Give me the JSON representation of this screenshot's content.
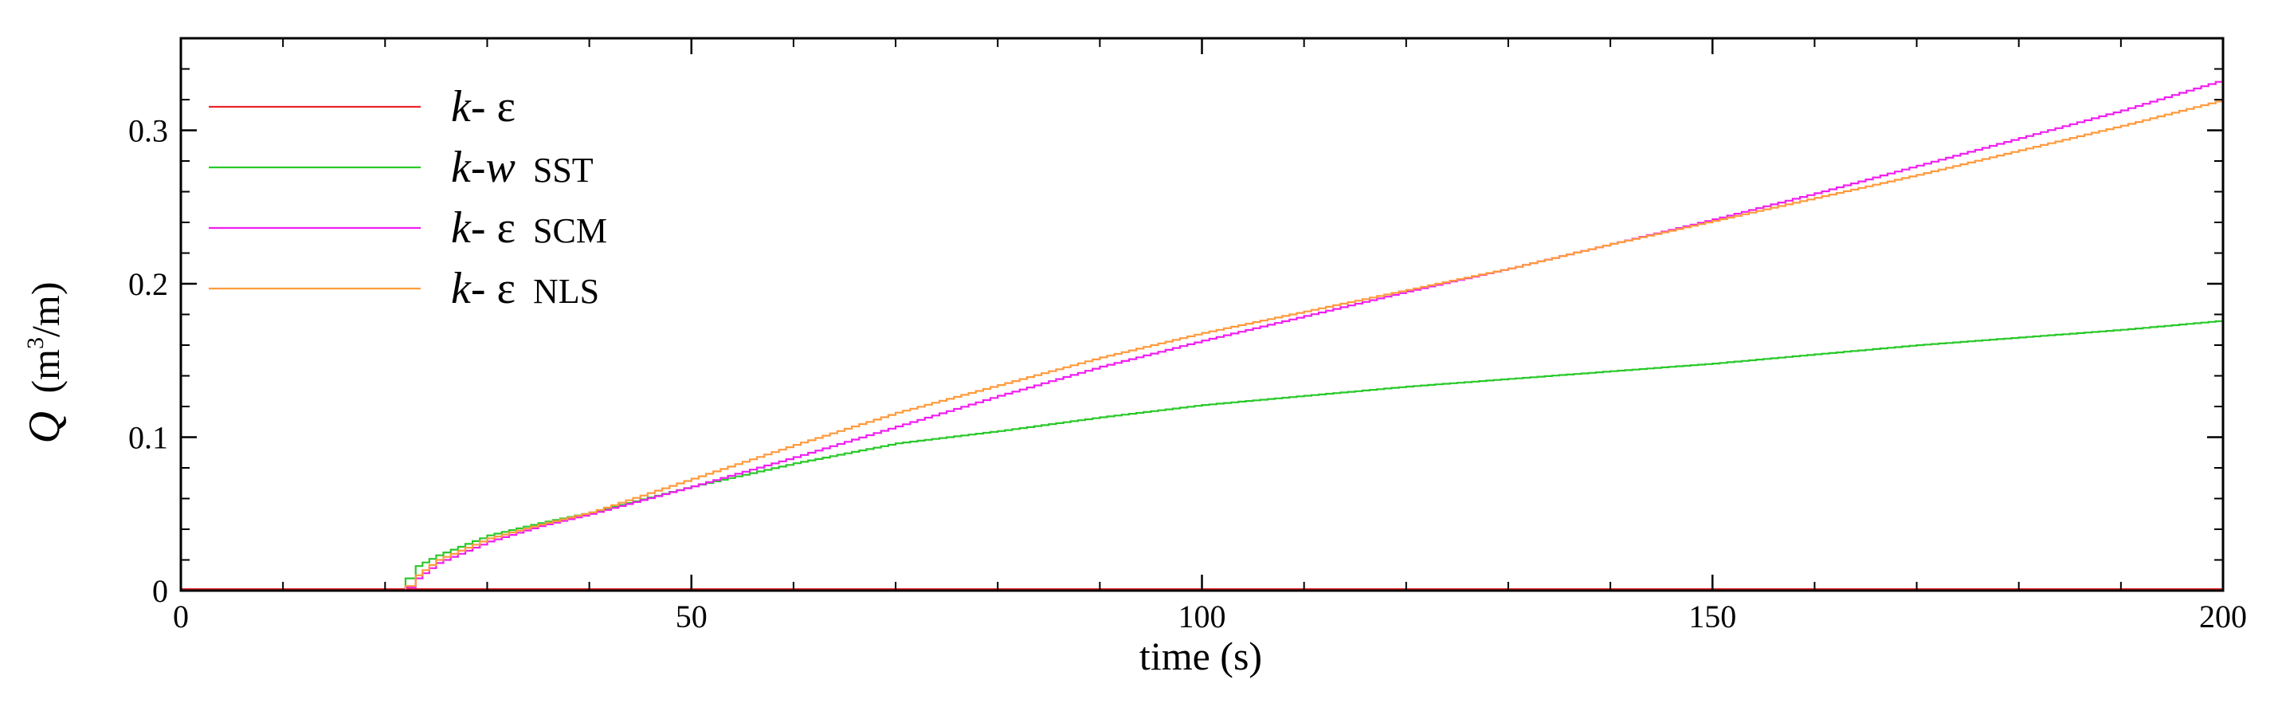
{
  "chart_data": {
    "type": "line",
    "title": "",
    "xlabel": "time (s)",
    "ylabel_symbol": "Q",
    "ylabel_unit_pre": "(m",
    "ylabel_unit_sup": "3",
    "ylabel_unit_post": "/m)",
    "xlim": [
      0,
      200
    ],
    "ylim": [
      0,
      0.36
    ],
    "x_ticks": [
      0,
      50,
      100,
      150,
      200
    ],
    "x_tick_labels": [
      "0",
      "50",
      "100",
      "150",
      "200"
    ],
    "y_ticks": [
      0,
      0.1,
      0.2,
      0.3
    ],
    "y_tick_labels": [
      "0",
      "0.1",
      "0.2",
      "0.3"
    ],
    "grid": false,
    "legend_position": "top-left",
    "series": [
      {
        "name": "k-ε",
        "name_italic": "k",
        "name_rest": "- ε",
        "name_suffix": "",
        "color": "#e8262d",
        "x": [
          0,
          50,
          100,
          150,
          200
        ],
        "y": [
          0.001,
          0.001,
          0.001,
          0.001,
          0.001
        ]
      },
      {
        "name": "k-w SST",
        "name_italic": "k",
        "name_rest": "-w",
        "name_suffix": "SST",
        "color": "#29c929",
        "x": [
          0,
          21,
          22,
          23,
          25,
          30,
          35,
          40,
          50,
          60,
          70,
          80,
          90,
          100,
          110,
          120,
          130,
          140,
          150,
          160,
          170,
          180,
          190,
          200
        ],
        "y": [
          0,
          0,
          0.008,
          0.016,
          0.023,
          0.036,
          0.044,
          0.051,
          0.068,
          0.083,
          0.096,
          0.104,
          0.113,
          0.121,
          0.127,
          0.133,
          0.138,
          0.143,
          0.148,
          0.154,
          0.16,
          0.165,
          0.17,
          0.176
        ]
      },
      {
        "name": "k-ε SCM",
        "name_italic": "k",
        "name_rest": "- ε",
        "name_suffix": "SCM",
        "color": "#f01ff0",
        "x": [
          0,
          21,
          22,
          23,
          25,
          30,
          35,
          40,
          50,
          60,
          70,
          80,
          90,
          100,
          110,
          120,
          130,
          140,
          150,
          160,
          170,
          180,
          190,
          200
        ],
        "y": [
          0,
          0,
          0.002,
          0.008,
          0.018,
          0.032,
          0.042,
          0.05,
          0.068,
          0.087,
          0.107,
          0.127,
          0.146,
          0.163,
          0.179,
          0.195,
          0.21,
          0.226,
          0.242,
          0.259,
          0.277,
          0.295,
          0.313,
          0.333
        ]
      },
      {
        "name": "k-ε NLS",
        "name_italic": "k",
        "name_rest": "- ε",
        "name_suffix": "NLS",
        "color": "#ff9a3c",
        "x": [
          0,
          21,
          22,
          23,
          25,
          30,
          35,
          40,
          50,
          60,
          70,
          80,
          90,
          100,
          110,
          120,
          130,
          140,
          150,
          160,
          170,
          180,
          190,
          200
        ],
        "y": [
          0,
          0,
          0.003,
          0.01,
          0.02,
          0.034,
          0.043,
          0.051,
          0.073,
          0.095,
          0.116,
          0.134,
          0.152,
          0.168,
          0.182,
          0.196,
          0.21,
          0.226,
          0.241,
          0.256,
          0.271,
          0.287,
          0.303,
          0.32
        ]
      }
    ]
  }
}
